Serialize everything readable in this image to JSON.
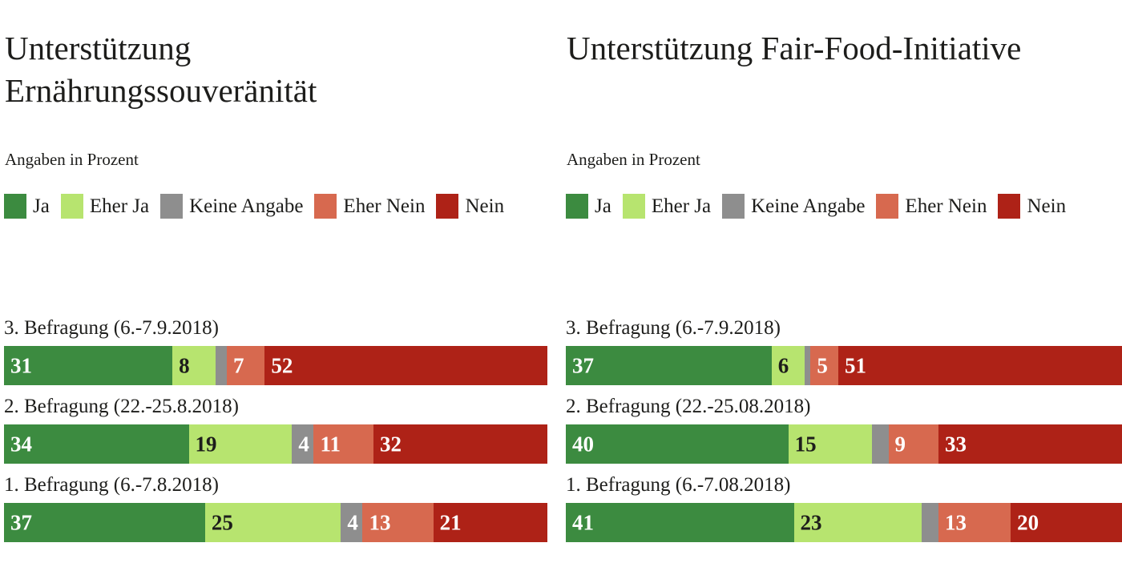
{
  "page": {
    "background": "#FFFFFF",
    "text_color": "#1D1D1B"
  },
  "palette": {
    "series_colors": [
      "#3C8B40",
      "#B7E46F",
      "#8E8E8E",
      "#D7694F",
      "#AE2217"
    ],
    "label_colors": [
      "#FFFFFF",
      "#1D1D1B",
      "#FFFFFF",
      "#FFFFFF",
      "#FFFFFF"
    ]
  },
  "chart_data": [
    {
      "type": "bar",
      "orientation": "horizontal",
      "stacked": true,
      "title": "Unterstützung Ernährungssouveränität",
      "subtitle": "Angaben in Prozent",
      "legend": [
        "Ja",
        "Eher Ja",
        "Keine Angabe",
        "Eher Nein",
        "Nein"
      ],
      "legend_position": "top",
      "grid": false,
      "xlim": [
        0,
        100
      ],
      "data_label_min": 4,
      "categories": [
        "3. Befragung (6.-7.9.2018)",
        "2. Befragung (22.-25.8.2018)",
        "1. Befragung (6.-7.8.2018)"
      ],
      "series": [
        {
          "name": "Ja",
          "values": [
            31,
            34,
            37
          ]
        },
        {
          "name": "Eher Ja",
          "values": [
            8,
            19,
            25
          ]
        },
        {
          "name": "Keine Angabe",
          "values": [
            2,
            4,
            4
          ]
        },
        {
          "name": "Eher Nein",
          "values": [
            7,
            11,
            13
          ]
        },
        {
          "name": "Nein",
          "values": [
            52,
            32,
            21
          ]
        }
      ]
    },
    {
      "type": "bar",
      "orientation": "horizontal",
      "stacked": true,
      "title": "Unterstützung Fair-Food-Initiative",
      "subtitle": "Angaben in Prozent",
      "legend": [
        "Ja",
        "Eher Ja",
        "Keine Angabe",
        "Eher Nein",
        "Nein"
      ],
      "legend_position": "top",
      "grid": false,
      "xlim": [
        0,
        100
      ],
      "data_label_min": 4,
      "categories": [
        "3. Befragung (6.-7.9.2018)",
        "2. Befragung (22.-25.08.2018)",
        "1. Befragung (6.-7.08.2018)"
      ],
      "series": [
        {
          "name": "Ja",
          "values": [
            37,
            40,
            41
          ]
        },
        {
          "name": "Eher Ja",
          "values": [
            6,
            15,
            23
          ]
        },
        {
          "name": "Keine Angabe",
          "values": [
            1,
            3,
            3
          ]
        },
        {
          "name": "Eher Nein",
          "values": [
            5,
            9,
            13
          ]
        },
        {
          "name": "Nein",
          "values": [
            51,
            33,
            20
          ]
        }
      ]
    }
  ]
}
